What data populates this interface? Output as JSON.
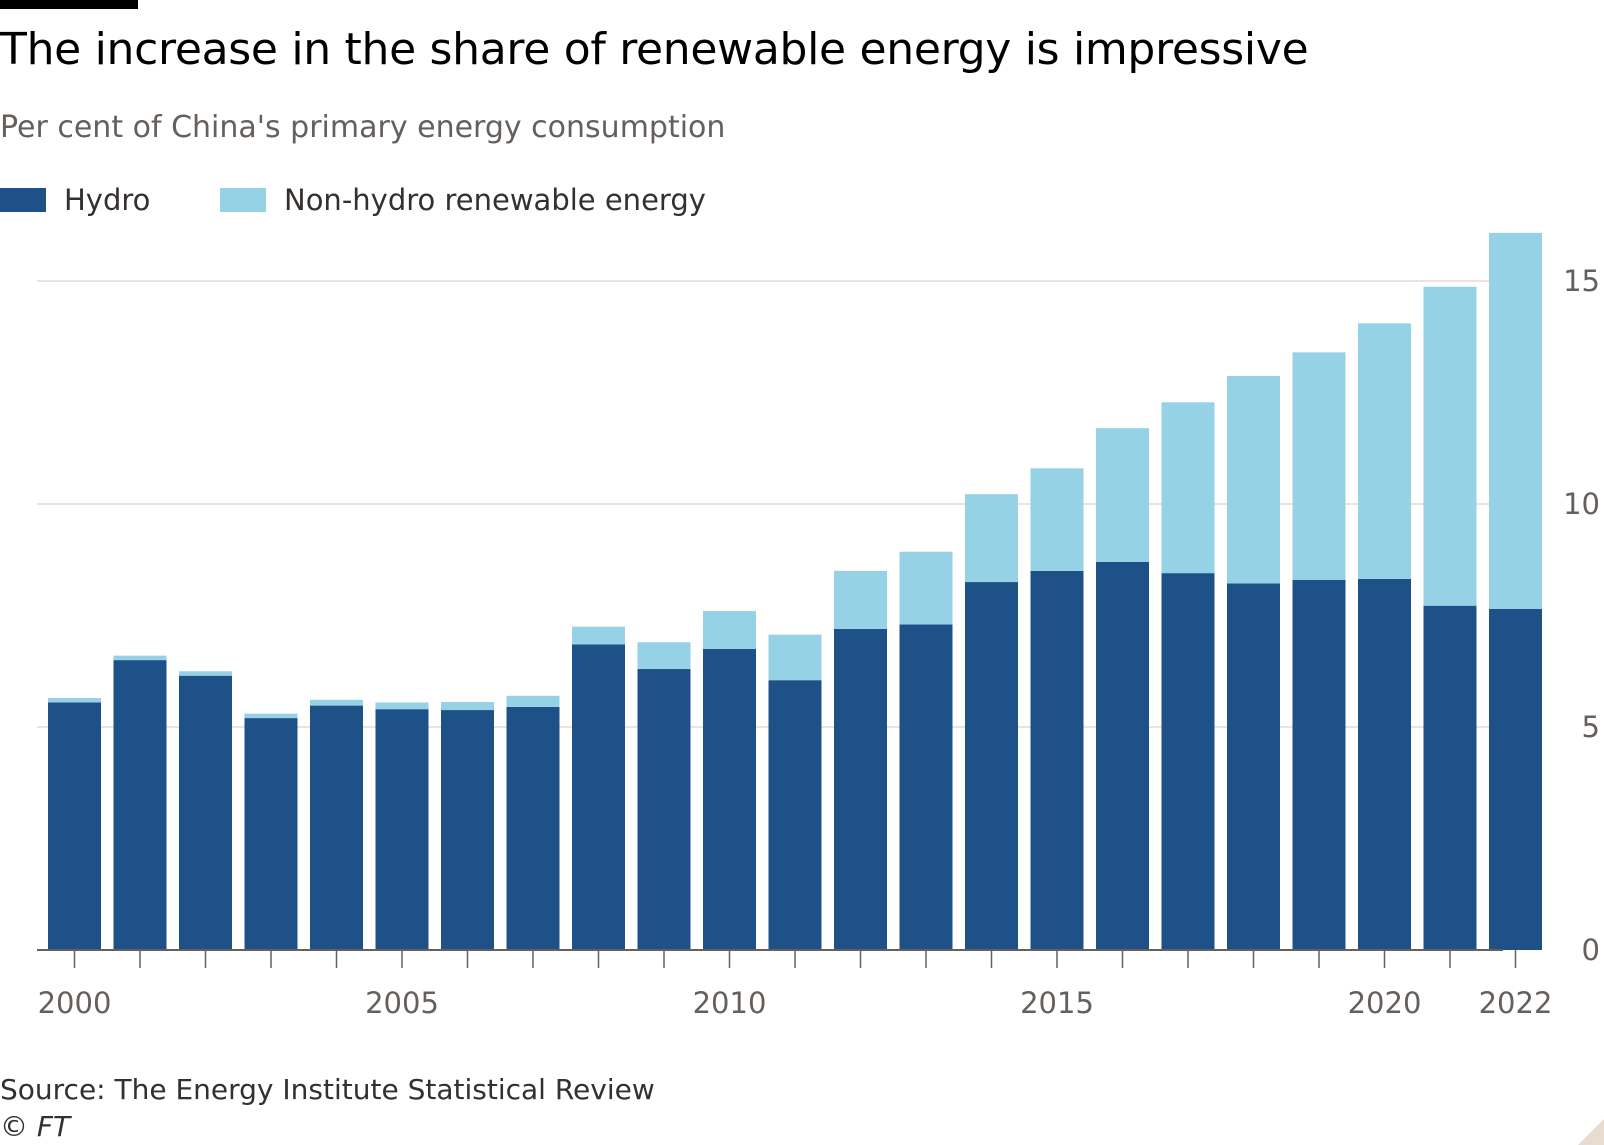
{
  "header": {
    "title": "The increase in the share of renewable energy is impressive",
    "subtitle": "Per cent of China's primary energy consumption"
  },
  "legend": {
    "items": [
      {
        "label": "Hydro",
        "color": "#1f5189"
      },
      {
        "label": "Non-hydro renewable energy",
        "color": "#96d2e6"
      }
    ]
  },
  "footer": {
    "source": "Source: The Energy Institute Statistical Review",
    "credit": "© FT"
  },
  "chart_data": {
    "type": "bar",
    "stacked": true,
    "title": "The increase in the share of renewable energy is impressive",
    "subtitle": "Per cent of China's primary energy consumption",
    "xlabel": "",
    "ylabel": "",
    "ylim": [
      0,
      15
    ],
    "yticks": [
      0,
      5,
      10,
      15
    ],
    "xtick_labels": [
      "2000",
      "2005",
      "2010",
      "2015",
      "2020",
      "2022"
    ],
    "y_axis_side": "right",
    "grid": true,
    "legend_position": "top-left",
    "categories": [
      2000,
      2001,
      2002,
      2003,
      2004,
      2005,
      2006,
      2007,
      2008,
      2009,
      2010,
      2011,
      2012,
      2013,
      2014,
      2015,
      2016,
      2017,
      2018,
      2019,
      2020,
      2021,
      2022
    ],
    "series": [
      {
        "name": "Hydro",
        "color": "#1f5189",
        "values": [
          5.55,
          6.5,
          6.15,
          5.2,
          5.48,
          5.4,
          5.38,
          5.45,
          6.85,
          6.3,
          6.75,
          6.05,
          7.2,
          7.3,
          8.25,
          8.5,
          8.7,
          8.45,
          8.22,
          8.3,
          8.32,
          7.72,
          7.65
        ]
      },
      {
        "name": "Non-hydro renewable energy",
        "color": "#96d2e6",
        "values": [
          0.1,
          0.1,
          0.1,
          0.1,
          0.13,
          0.15,
          0.18,
          0.25,
          0.4,
          0.6,
          0.85,
          1.02,
          1.3,
          1.63,
          1.97,
          2.3,
          3.0,
          3.83,
          4.65,
          5.1,
          5.73,
          7.15,
          8.43
        ]
      }
    ]
  }
}
